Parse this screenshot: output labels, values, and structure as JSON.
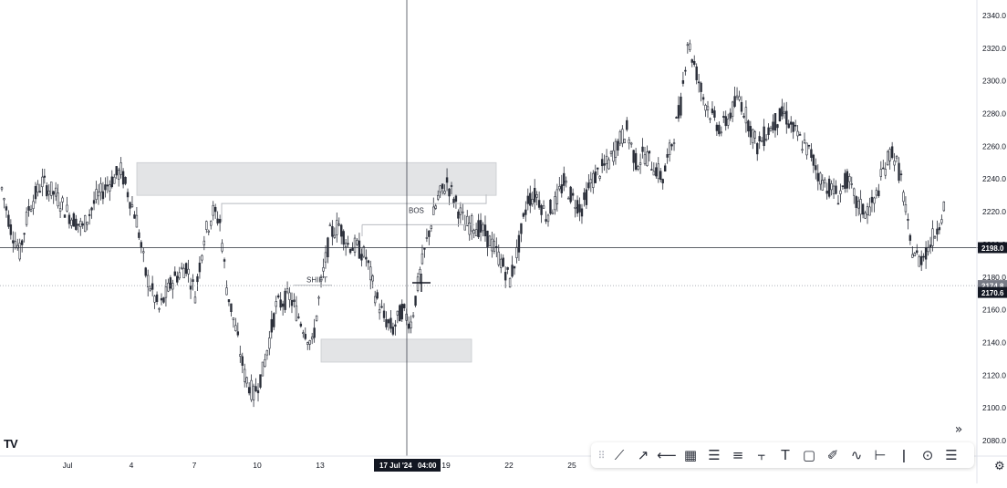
{
  "chart_data": {
    "type": "candlestick",
    "instrument_hint": "XAUUSD-like price chart",
    "y_axis": {
      "min": 2075,
      "max": 2345,
      "ticks": [
        2080,
        2100,
        2120,
        2140,
        2160,
        2180,
        2200,
        2220,
        2240,
        2260,
        2280,
        2300,
        2320,
        2340
      ],
      "tick_labels": [
        "2080.0",
        "2100.0",
        "2120.0",
        "2140.0",
        "2160.0",
        "2180.0",
        "2200.0",
        "2220.0",
        "2240.0",
        "2260.0",
        "2280.0",
        "2300.0",
        "2320.0",
        "2340.0"
      ]
    },
    "x_axis": {
      "labels": [
        "Jul",
        "4",
        "7",
        "10",
        "13",
        "19",
        "22",
        "25"
      ],
      "crosshair_label": "17 Jul '24",
      "crosshair_time": "04:00"
    },
    "price_labels": {
      "crosshair_price": "2198.0",
      "current_price": "2174.8",
      "last_price": "2170.6"
    },
    "annotations": [
      {
        "text": "SHIFT",
        "price": 2175
      },
      {
        "text": "BOS",
        "price": 2218
      }
    ],
    "zones": [
      {
        "name": "supply-zone",
        "from_price": 2230,
        "to_price": 2250,
        "start_label": "4",
        "end_label": "22"
      },
      {
        "name": "demand-zone",
        "from_price": 2128,
        "to_price": 2142,
        "start_label": "13",
        "end_label": "19"
      }
    ],
    "trendline_segments": [
      {
        "price": 2225,
        "start_label": "7",
        "end_label": "22"
      },
      {
        "price": 2212,
        "start_label": "16",
        "end_label": "19"
      },
      {
        "price": 2175,
        "start_label": "13",
        "end_label": "13"
      }
    ],
    "candle_count": 420,
    "price_path": [
      [
        0,
        2234
      ],
      [
        4,
        2210
      ],
      [
        8,
        2195
      ],
      [
        12,
        2222
      ],
      [
        18,
        2238
      ],
      [
        24,
        2230
      ],
      [
        30,
        2218
      ],
      [
        36,
        2210
      ],
      [
        42,
        2228
      ],
      [
        48,
        2238
      ],
      [
        53,
        2245
      ],
      [
        56,
        2232
      ],
      [
        60,
        2215
      ],
      [
        64,
        2182
      ],
      [
        70,
        2160
      ],
      [
        76,
        2178
      ],
      [
        82,
        2187
      ],
      [
        86,
        2170
      ],
      [
        90,
        2205
      ],
      [
        94,
        2220
      ],
      [
        97,
        2214
      ],
      [
        100,
        2174
      ],
      [
        104,
        2148
      ],
      [
        108,
        2120
      ],
      [
        112,
        2108
      ],
      [
        116,
        2122
      ],
      [
        122,
        2162
      ],
      [
        128,
        2168
      ],
      [
        134,
        2150
      ],
      [
        138,
        2138
      ],
      [
        142,
        2175
      ],
      [
        146,
        2206
      ],
      [
        150,
        2212
      ],
      [
        154,
        2200
      ],
      [
        158,
        2198
      ],
      [
        162,
        2192
      ],
      [
        166,
        2170
      ],
      [
        170,
        2155
      ],
      [
        174,
        2148
      ],
      [
        178,
        2160
      ],
      [
        182,
        2152
      ],
      [
        186,
        2182
      ],
      [
        190,
        2208
      ],
      [
        194,
        2228
      ],
      [
        198,
        2238
      ],
      [
        202,
        2225
      ],
      [
        206,
        2212
      ],
      [
        210,
        2212
      ],
      [
        214,
        2208
      ],
      [
        218,
        2200
      ],
      [
        222,
        2190
      ],
      [
        226,
        2178
      ],
      [
        230,
        2200
      ],
      [
        234,
        2228
      ],
      [
        238,
        2230
      ],
      [
        242,
        2218
      ],
      [
        246,
        2225
      ],
      [
        250,
        2238
      ],
      [
        254,
        2228
      ],
      [
        258,
        2222
      ],
      [
        262,
        2238
      ],
      [
        266,
        2245
      ],
      [
        270,
        2250
      ],
      [
        274,
        2262
      ],
      [
        278,
        2270
      ],
      [
        282,
        2250
      ],
      [
        286,
        2255
      ],
      [
        290,
        2248
      ],
      [
        294,
        2240
      ],
      [
        298,
        2262
      ],
      [
        302,
        2285
      ],
      [
        305,
        2325
      ],
      [
        308,
        2310
      ],
      [
        312,
        2290
      ],
      [
        316,
        2278
      ],
      [
        320,
        2270
      ],
      [
        324,
        2280
      ],
      [
        328,
        2290
      ],
      [
        332,
        2275
      ],
      [
        336,
        2260
      ],
      [
        340,
        2268
      ],
      [
        344,
        2275
      ],
      [
        348,
        2280
      ],
      [
        352,
        2270
      ],
      [
        356,
        2262
      ],
      [
        360,
        2255
      ],
      [
        364,
        2240
      ],
      [
        368,
        2235
      ],
      [
        372,
        2230
      ],
      [
        376,
        2240
      ],
      [
        380,
        2225
      ],
      [
        384,
        2220
      ],
      [
        388,
        2225
      ],
      [
        392,
        2245
      ],
      [
        396,
        2258
      ],
      [
        400,
        2240
      ],
      [
        404,
        2200
      ],
      [
        408,
        2190
      ],
      [
        412,
        2198
      ],
      [
        416,
        2210
      ],
      [
        420,
        2228
      ],
      [
        424,
        2200
      ],
      [
        428,
        2195
      ],
      [
        432,
        2180
      ],
      [
        435,
        2170
      ]
    ]
  },
  "overlay": {
    "shift_label": "SHIFT",
    "bos_label": "BOS",
    "logo": "TV",
    "expand_icon": "»",
    "settings_icon": "⚙"
  },
  "toolbar": {
    "tools": [
      {
        "name": "grip-icon",
        "glyph": "⠿"
      },
      {
        "name": "trend-line-icon",
        "glyph": "⟋"
      },
      {
        "name": "ray-icon",
        "glyph": "↗"
      },
      {
        "name": "horizontal-ray-icon",
        "glyph": "⟵"
      },
      {
        "name": "grid-icon",
        "glyph": "▦"
      },
      {
        "name": "parallel-channel-icon",
        "glyph": "☰"
      },
      {
        "name": "regression-icon",
        "glyph": "≡"
      },
      {
        "name": "pitchfork-icon",
        "glyph": "⫟"
      },
      {
        "name": "text-icon",
        "glyph": "T"
      },
      {
        "name": "rectangle-icon",
        "glyph": "▢"
      },
      {
        "name": "brush-icon",
        "glyph": "✐"
      },
      {
        "name": "path-icon",
        "glyph": "∿"
      },
      {
        "name": "measure-icon",
        "glyph": "⊢"
      },
      {
        "name": "vertical-line-icon",
        "glyph": "ǀ"
      },
      {
        "name": "circle-icon",
        "glyph": "⊙"
      },
      {
        "name": "more-tools-icon",
        "glyph": "☰"
      }
    ]
  }
}
